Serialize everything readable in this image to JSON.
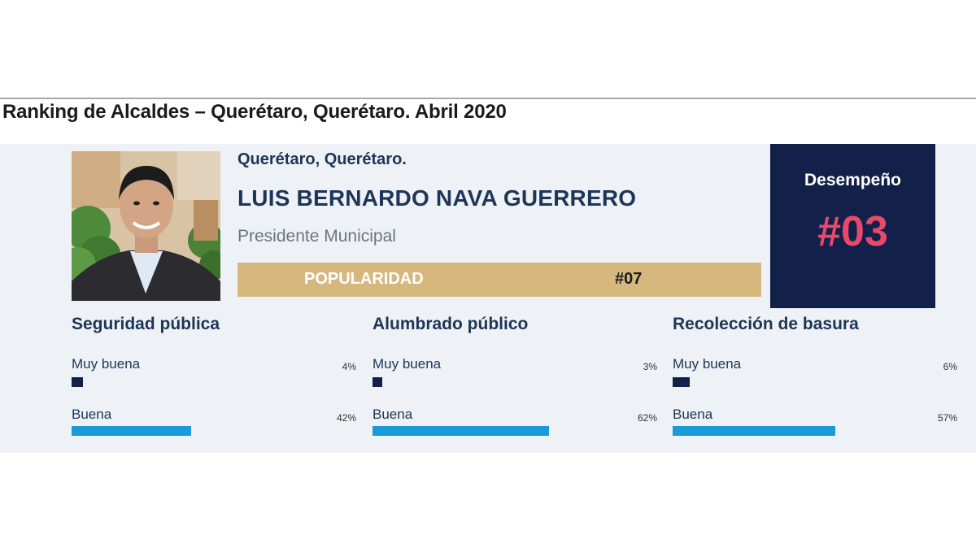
{
  "title": "Ranking de Alcaldes – Querétaro, Querétaro. Abril 2020",
  "profile": {
    "location": "Querétaro, Querétaro.",
    "name": "LUIS BERNARDO NAVA GUERRERO",
    "role": "Presidente Municipal",
    "popularity": {
      "label": "POPULARIDAD",
      "rank": "#07"
    }
  },
  "performance": {
    "label": "Desempeño",
    "rank": "#03"
  },
  "services": [
    {
      "title": "Seguridad pública",
      "ratings": [
        {
          "label": "Muy buena",
          "percent_text": "4%",
          "value": 4
        },
        {
          "label": "Buena",
          "percent_text": "42%",
          "value": 42
        }
      ]
    },
    {
      "title": "Alumbrado público",
      "ratings": [
        {
          "label": "Muy buena",
          "percent_text": "3%",
          "value": 3
        },
        {
          "label": "Buena",
          "percent_text": "62%",
          "value": 62
        }
      ]
    },
    {
      "title": "Recolección de basura",
      "ratings": [
        {
          "label": "Muy buena",
          "percent_text": "6%",
          "value": 6
        },
        {
          "label": "Buena",
          "percent_text": "57%",
          "value": 57
        }
      ]
    }
  ],
  "colors": {
    "navy": "#13214a",
    "gold": "#d6b77e",
    "pink": "#e8486a",
    "blue": "#1a9bd7"
  }
}
